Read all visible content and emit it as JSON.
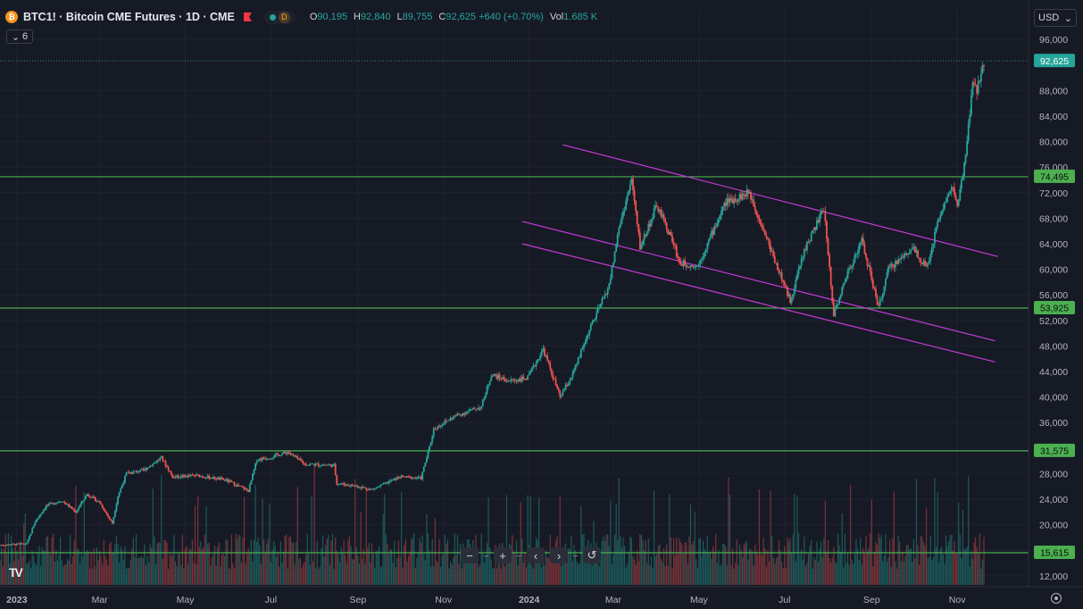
{
  "header": {
    "symbol": "BTC1! · Bitcoin CME Futures · 1D · CME",
    "symbol_icon": "bitcoin-icon",
    "status_letter": "D",
    "ohlc": [
      {
        "k": "O",
        "v": "90,195"
      },
      {
        "k": "H",
        "v": "92,840"
      },
      {
        "k": "L",
        "v": "89,755"
      },
      {
        "k": "C",
        "v": "92,625 +640 (+0.70%)"
      },
      {
        "k": "Vol",
        "v": "1.685 K"
      }
    ],
    "indicators_count": "6"
  },
  "currency_selector": "USD",
  "navigation": {
    "zoom_out": "−",
    "zoom_in": "+",
    "scroll_left": "‹",
    "scroll_right": "›",
    "reset": "↺"
  },
  "logo_text": "TV",
  "colors": {
    "up": "#26a69a",
    "down": "#ef5350",
    "level_line": "#4caf50",
    "channel": "#c53ad8",
    "background": "#161a25"
  },
  "chart_data": {
    "type": "candlestick",
    "title": "BTC1! · Bitcoin CME Futures · 1D · CME",
    "ylim": [
      11000,
      97000
    ],
    "y_ticks": [
      12000,
      16000,
      20000,
      24000,
      28000,
      32000,
      36000,
      40000,
      44000,
      48000,
      52000,
      56000,
      60000,
      64000,
      68000,
      72000,
      76000,
      80000,
      84000,
      88000,
      96000
    ],
    "y_tick_labels": [
      "12,000",
      "16,000",
      "20,000",
      "24,000",
      "28,000",
      "32,000",
      "36,000",
      "40,000",
      "44,000",
      "48,000",
      "52,000",
      "56,000",
      "60,000",
      "64,000",
      "68,000",
      "72,000",
      "76,000",
      "80,000",
      "84,000",
      "88,000",
      "96,000"
    ],
    "x_start": "2022-12-20",
    "x_end": "2024-11-20",
    "x_ticks": [
      {
        "date": "2023-01-01",
        "label": "2023"
      },
      {
        "date": "2023-03-01",
        "label": "Mar"
      },
      {
        "date": "2023-05-01",
        "label": "May"
      },
      {
        "date": "2023-07-01",
        "label": "Jul"
      },
      {
        "date": "2023-09-01",
        "label": "Sep"
      },
      {
        "date": "2023-11-01",
        "label": "Nov"
      },
      {
        "date": "2024-01-01",
        "label": "2024"
      },
      {
        "date": "2024-03-01",
        "label": "Mar"
      },
      {
        "date": "2024-05-01",
        "label": "May"
      },
      {
        "date": "2024-07-01",
        "label": "Jul"
      },
      {
        "date": "2024-09-01",
        "label": "Sep"
      },
      {
        "date": "2024-11-01",
        "label": "Nov"
      }
    ],
    "price_path": [
      [
        "2022-12-20",
        16800
      ],
      [
        "2023-01-08",
        17000
      ],
      [
        "2023-01-14",
        20500
      ],
      [
        "2023-01-22",
        23000
      ],
      [
        "2023-02-02",
        23800
      ],
      [
        "2023-02-12",
        22000
      ],
      [
        "2023-02-20",
        24800
      ],
      [
        "2023-03-01",
        23500
      ],
      [
        "2023-03-10",
        20200
      ],
      [
        "2023-03-14",
        24500
      ],
      [
        "2023-03-20",
        28000
      ],
      [
        "2023-04-01",
        28500
      ],
      [
        "2023-04-14",
        30500
      ],
      [
        "2023-04-22",
        27500
      ],
      [
        "2023-05-10",
        27700
      ],
      [
        "2023-05-30",
        27000
      ],
      [
        "2023-06-15",
        25300
      ],
      [
        "2023-06-21",
        30200
      ],
      [
        "2023-07-01",
        30600
      ],
      [
        "2023-07-13",
        31400
      ],
      [
        "2023-07-25",
        29500
      ],
      [
        "2023-08-15",
        29300
      ],
      [
        "2023-08-17",
        26500
      ],
      [
        "2023-09-01",
        26000
      ],
      [
        "2023-09-11",
        25500
      ],
      [
        "2023-10-01",
        27500
      ],
      [
        "2023-10-16",
        27300
      ],
      [
        "2023-10-23",
        33000
      ],
      [
        "2023-10-25",
        35000
      ],
      [
        "2023-11-09",
        37000
      ],
      [
        "2023-11-28",
        38500
      ],
      [
        "2023-12-05",
        43500
      ],
      [
        "2023-12-18",
        42500
      ],
      [
        "2023-12-31",
        43000
      ],
      [
        "2024-01-11",
        47500
      ],
      [
        "2024-01-23",
        40000
      ],
      [
        "2024-02-01",
        43500
      ],
      [
        "2024-02-12",
        50000
      ],
      [
        "2024-02-27",
        57500
      ],
      [
        "2024-03-05",
        66500
      ],
      [
        "2024-03-14",
        74000
      ],
      [
        "2024-03-20",
        63500
      ],
      [
        "2024-04-01",
        70000
      ],
      [
        "2024-04-13",
        64000
      ],
      [
        "2024-04-17",
        61000
      ],
      [
        "2024-04-30",
        60500
      ],
      [
        "2024-05-20",
        70500
      ],
      [
        "2024-06-06",
        72000
      ],
      [
        "2024-06-18",
        65000
      ],
      [
        "2024-07-05",
        55000
      ],
      [
        "2024-07-15",
        63000
      ],
      [
        "2024-07-29",
        69500
      ],
      [
        "2024-08-05",
        53000
      ],
      [
        "2024-08-15",
        59500
      ],
      [
        "2024-08-25",
        64500
      ],
      [
        "2024-09-06",
        54000
      ],
      [
        "2024-09-13",
        60000
      ],
      [
        "2024-10-01",
        63500
      ],
      [
        "2024-10-10",
        60000
      ],
      [
        "2024-10-20",
        69000
      ],
      [
        "2024-10-29",
        73000
      ],
      [
        "2024-11-01",
        69500
      ],
      [
        "2024-11-06",
        76000
      ],
      [
        "2024-11-12",
        89000
      ],
      [
        "2024-11-15",
        88000
      ],
      [
        "2024-11-20",
        92625
      ]
    ],
    "last_price": 92625,
    "horizontal_levels": [
      74495,
      53925,
      31575,
      15615
    ],
    "horizontal_level_labels": [
      "74,495",
      "53,925",
      "31,575",
      "15,615"
    ],
    "channel_lines": [
      {
        "x1": "2024-01-25",
        "y1": 79500,
        "x2": "2024-11-30",
        "y2": 62000
      },
      {
        "x1": "2023-12-27",
        "y1": 67500,
        "x2": "2024-11-28",
        "y2": 48800
      },
      {
        "x1": "2023-12-27",
        "y1": 64000,
        "x2": "2024-11-28",
        "y2": 45500
      }
    ],
    "volume_max": 100,
    "grid": true
  }
}
